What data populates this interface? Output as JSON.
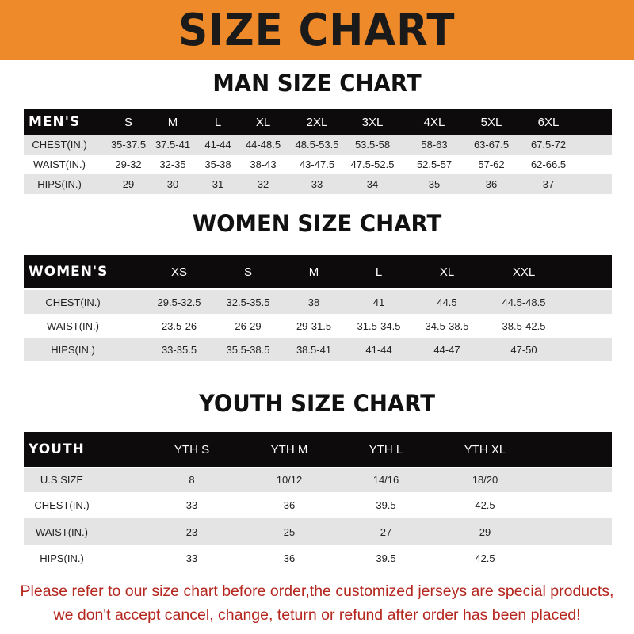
{
  "banner_title": "SIZE CHART",
  "men": {
    "title": "MAN SIZE CHART",
    "header": [
      "MEN'S",
      "S",
      "M",
      "L",
      "XL",
      "2XL",
      "3XL",
      "4XL",
      "5XL",
      "6XL"
    ],
    "rows": [
      [
        "CHEST(IN.)",
        "35-37.5",
        "37.5-41",
        "41-44",
        "44-48.5",
        "48.5-53.5",
        "53.5-58",
        "58-63",
        "63-67.5",
        "67.5-72"
      ],
      [
        "WAIST(IN.)",
        "29-32",
        "32-35",
        "35-38",
        "38-43",
        "43-47.5",
        "47.5-52.5",
        "52.5-57",
        "57-62",
        "62-66.5"
      ],
      [
        "HIPS(IN.)",
        "29",
        "30",
        "31",
        "32",
        "33",
        "34",
        "35",
        "36",
        "37"
      ]
    ]
  },
  "women": {
    "title": "WOMEN SIZE CHART",
    "header": [
      "WOMEN'S",
      "XS",
      "S",
      "M",
      "L",
      "XL",
      "XXL"
    ],
    "rows": [
      [
        "CHEST(IN.)",
        "29.5-32.5",
        "32.5-35.5",
        "38",
        "41",
        "44.5",
        "44.5-48.5"
      ],
      [
        "WAIST(IN.)",
        "23.5-26",
        "26-29",
        "29-31.5",
        "31.5-34.5",
        "34.5-38.5",
        "38.5-42.5"
      ],
      [
        "HIPS(IN.)",
        "33-35.5",
        "35.5-38.5",
        "38.5-41",
        "41-44",
        "44-47",
        "47-50"
      ]
    ]
  },
  "youth": {
    "title": "YOUTH SIZE CHART",
    "header": [
      "YOUTH",
      "YTH S",
      "YTH M",
      "YTH L",
      "YTH XL"
    ],
    "rows": [
      [
        "U.S.SIZE",
        "8",
        "10/12",
        "14/16",
        "18/20"
      ],
      [
        "CHEST(IN.)",
        "33",
        "36",
        "39.5",
        "42.5"
      ],
      [
        "WAIST(IN.)",
        "23",
        "25",
        "27",
        "29"
      ],
      [
        "HIPS(IN.)",
        "33",
        "36",
        "39.5",
        "42.5"
      ]
    ]
  },
  "notice": {
    "line1": "Please refer to our size chart before order,the customized jerseys are special products,",
    "line2": "we don't accept cancel, change, teturn or refund after order has been placed!"
  },
  "colors": {
    "banner": "#ef8a2a",
    "header_row": "#0d0b0b",
    "stripe": "#e4e4e4",
    "notice": "#b5261e"
  }
}
